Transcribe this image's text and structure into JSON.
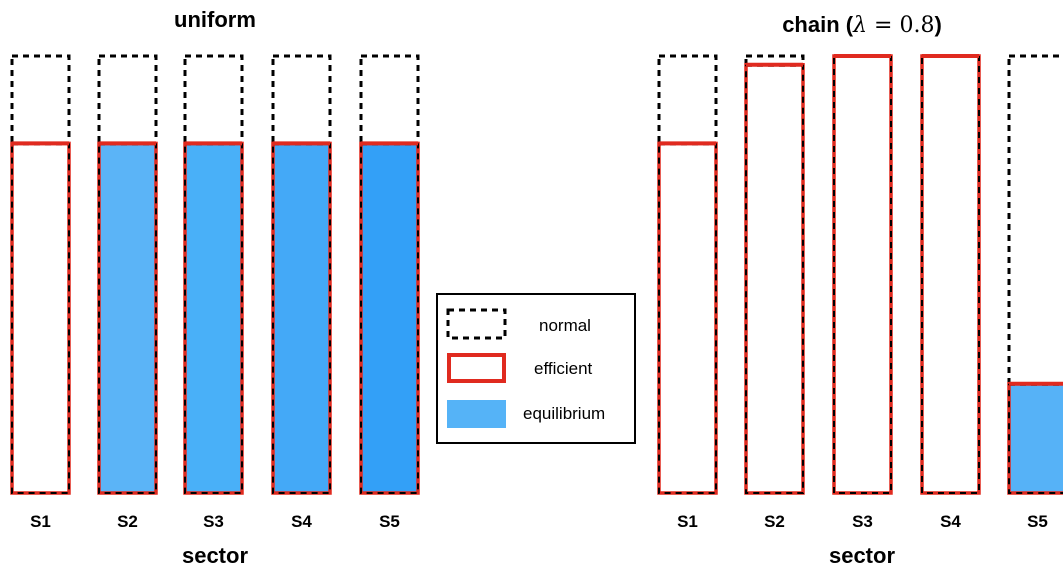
{
  "chart_data": [
    {
      "type": "bar",
      "title": "uniform",
      "xlabel": "sector",
      "ylabel": "",
      "ylim": [
        0,
        1
      ],
      "categories": [
        "S1",
        "S2",
        "S3",
        "S4",
        "S5"
      ],
      "series": [
        {
          "name": "normal",
          "values": [
            1.0,
            1.0,
            1.0,
            1.0,
            1.0
          ]
        },
        {
          "name": "efficient",
          "values": [
            0.8,
            0.8,
            0.8,
            0.8,
            0.8
          ]
        },
        {
          "name": "equilibrium",
          "values": [
            0.0,
            0.8,
            0.8,
            0.8,
            0.8
          ]
        }
      ],
      "equilibrium_colors": [
        "#ffffff",
        "#5bb4f7",
        "#49b0f8",
        "#44a9f7",
        "#33a0f7"
      ]
    },
    {
      "type": "bar",
      "title_prefix": "chain (",
      "title_math_var": "λ",
      "title_math_rest": " = 0.8",
      "title_suffix": ")",
      "xlabel": "sector",
      "ylabel": "",
      "ylim": [
        0,
        1
      ],
      "categories": [
        "S1",
        "S2",
        "S3",
        "S4",
        "S5"
      ],
      "series": [
        {
          "name": "normal",
          "values": [
            1.0,
            1.0,
            1.0,
            1.0,
            1.0
          ]
        },
        {
          "name": "efficient",
          "values": [
            0.8,
            0.98,
            1.0,
            1.0,
            0.25
          ]
        },
        {
          "name": "equilibrium",
          "values": [
            0.0,
            0.0,
            0.0,
            0.0,
            0.25
          ]
        }
      ],
      "equilibrium_colors": [
        "#ffffff",
        "#ffffff",
        "#ffffff",
        "#ffffff",
        "#56b2f7"
      ]
    }
  ],
  "legend": {
    "placement": "center",
    "items": [
      {
        "label": "normal",
        "style": "dashed-black"
      },
      {
        "label": "efficient",
        "style": "solid-red"
      },
      {
        "label": "equilibrium",
        "style": "filled-blue"
      }
    ]
  },
  "colors": {
    "normal": "#000000",
    "efficient": "#e02a1f",
    "equilibrium": "#55b3f7"
  }
}
